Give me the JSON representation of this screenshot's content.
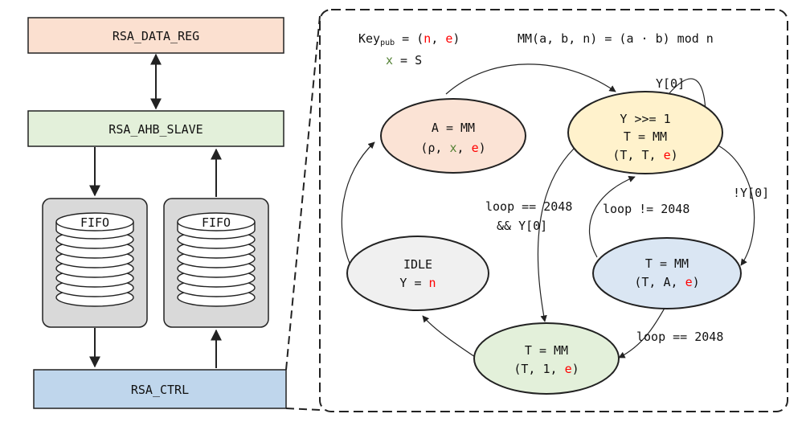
{
  "colors": {
    "data_reg": "#fbe0d0",
    "ahb_slave": "#e3f0da",
    "ctrl": "#bfd6ec",
    "fifo_box": "#d9d9d9",
    "state_A": "#fbe3d5",
    "state_Y": "#fff2cc",
    "state_T1": "#dae6f3",
    "state_T2": "#e3f0da",
    "state_idle": "#f0f0f0",
    "red": "#ff0000",
    "green": "#548235"
  },
  "blocks": {
    "data_reg": "RSA_DATA_REG",
    "ahb_slave": "RSA_AHB_SLAVE",
    "fifo_left": "FIFO",
    "fifo_right": "FIFO",
    "ctrl": "RSA_CTRL"
  },
  "header": {
    "key_prefix": "Key",
    "key_sub": "pub",
    "key_eq": " = (",
    "key_n": "n",
    "key_comma": ", ",
    "key_e": "e",
    "key_close": ")",
    "x_var": "x",
    "x_rest": " = S",
    "mm_def": "MM(a, b, n) = (a · b) mod n"
  },
  "states": {
    "A": {
      "l1": "A = MM",
      "l2_open": "(ρ, ",
      "l2_x": "x",
      "l2_sep": ", ",
      "l2_e": "e",
      "l2_close": ")"
    },
    "Y": {
      "l1": "Y >>= 1",
      "l2": "T = MM",
      "l3_open": "(T, T, ",
      "l3_e": "e",
      "l3_close": ")"
    },
    "T1": {
      "l1": "T = MM",
      "l2_open": "(T, A, ",
      "l2_e": "e",
      "l2_close": ")"
    },
    "T2": {
      "l1": "T = MM",
      "l2_open": "(T, 1, ",
      "l2_e": "e",
      "l2_close": ")"
    },
    "idle": {
      "l1": "IDLE",
      "l2_open": "Y = ",
      "l2_n": "n"
    }
  },
  "edges": {
    "y0_self": "Y[0]",
    "not_y0": "!Y[0]",
    "loop_ne": "loop != 2048",
    "loop_eq_and_l1": "loop == 2048",
    "loop_eq_and_l2": "&& Y[0]",
    "loop_eq": "loop == 2048"
  }
}
